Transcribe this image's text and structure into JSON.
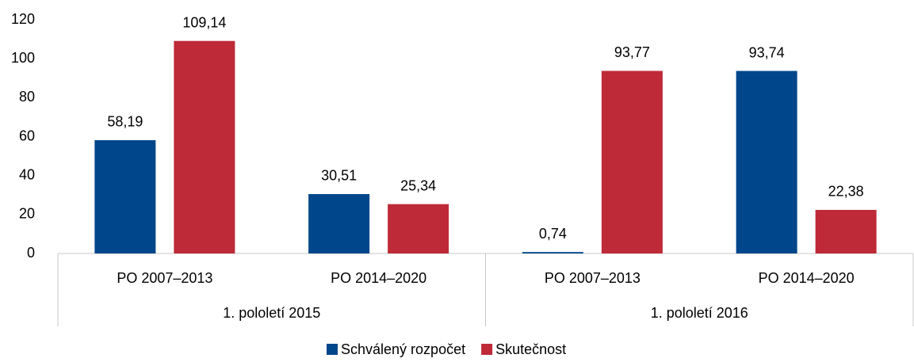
{
  "chart_data": {
    "type": "bar",
    "categories": [
      "PO 2007–2013",
      "PO 2014–2020",
      "PO 2007–2013",
      "PO 2014–2020"
    ],
    "groups": [
      "1. pololetí 2015",
      "1. pololetí 2016"
    ],
    "series": [
      {
        "name": "Schválený rozpočet",
        "color": "#00468b",
        "values": [
          58.19,
          30.51,
          0.74,
          93.74
        ],
        "value_labels": [
          "58,19",
          "30,51",
          "0,74",
          "93,74"
        ]
      },
      {
        "name": "Skutečnost",
        "color": "#be2a37",
        "values": [
          109.14,
          25.34,
          93.77,
          22.38
        ],
        "value_labels": [
          "109,14",
          "25,34",
          "93,77",
          "22,38"
        ]
      }
    ],
    "ylim": [
      0,
      120
    ],
    "yticks": [
      0,
      20,
      40,
      60,
      80,
      100,
      120
    ],
    "grid": false,
    "legend": "bottom"
  }
}
